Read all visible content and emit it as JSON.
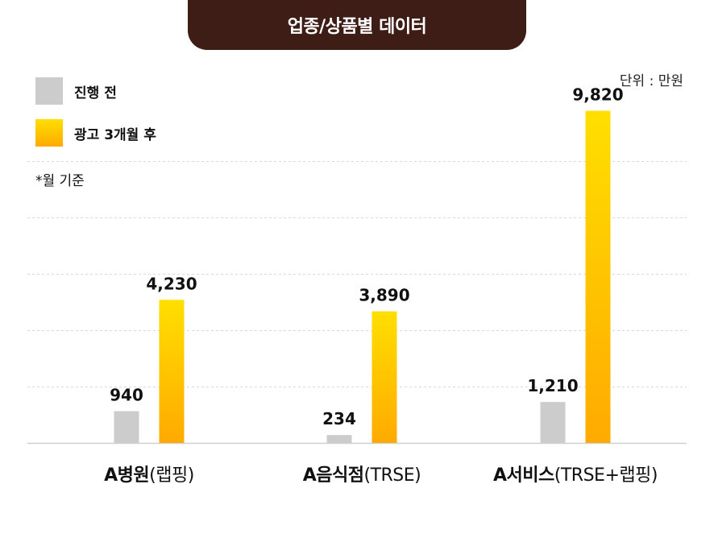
{
  "title": "업종/상품별 데이터",
  "unit": "단위 : 만원",
  "footnote": "*월 기준",
  "legend": [
    {
      "label": "진행 전",
      "color": "#cccccc"
    },
    {
      "label": "광고 3개월 후",
      "color": "#ffb400"
    }
  ],
  "colors": {
    "before": "#cccccc",
    "after_top": "#ffdf00",
    "after_bottom": "#ffaa00",
    "header_bg": "#3d1d16",
    "grid": "#d9d9d9"
  },
  "chart_data": {
    "type": "bar",
    "categories": [
      "A병원(랩핑)",
      "A음식점(TRSE)",
      "A서비스(TRSE+랩핑)"
    ],
    "category_parts": [
      {
        "bold": "A병원",
        "normal": "(랩핑)"
      },
      {
        "bold": "A음식점",
        "normal": "(TRSE)"
      },
      {
        "bold": "A서비스",
        "normal": "(TRSE+랩핑)"
      }
    ],
    "series": [
      {
        "name": "진행 전",
        "values": [
          940,
          234,
          1210
        ],
        "labels": [
          "940",
          "234",
          "1,210"
        ]
      },
      {
        "name": "광고 3개월 후",
        "values": [
          4230,
          3890,
          9820
        ],
        "labels": [
          "4,230",
          "3,890",
          "9,820"
        ]
      }
    ],
    "ylim": [
      0,
      10000
    ],
    "grid": true,
    "legend_position": "top-left",
    "title": "업종/상품별 데이터"
  }
}
